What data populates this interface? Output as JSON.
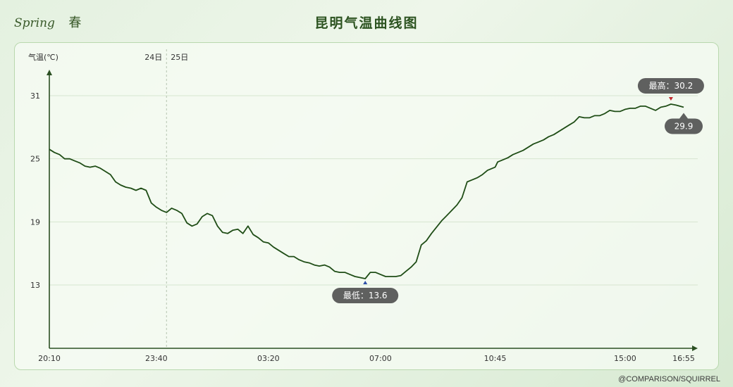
{
  "header": {
    "season_en": "Spring",
    "season_cn": "春"
  },
  "credit": "@COMPARISON/SQUIRREL",
  "colors": {
    "line": "#1f4d16",
    "axis": "#2b4f22",
    "tooltip_bg": "#5f605f",
    "max_marker": "#c0262b",
    "min_marker": "#2d4fa8"
  },
  "chart_data": {
    "type": "line",
    "title": "昆明气温曲线图",
    "ylabel": "气温(℃)",
    "yticks": [
      13,
      19,
      25,
      31
    ],
    "ylim": [
      7,
      33
    ],
    "xlim": [
      "20:10",
      "16:55"
    ],
    "xticks": [
      "20:10",
      "23:40",
      "03:20",
      "07:00",
      "10:45",
      "15:00",
      "16:55"
    ],
    "day_labels": {
      "before": "24日",
      "after": "25日"
    },
    "max_label": "最高：30.2",
    "min_label": "最低：13.6",
    "current_label": "29.9",
    "points": [
      [
        "20:10",
        25.9
      ],
      [
        "20:20",
        25.6
      ],
      [
        "20:30",
        25.4
      ],
      [
        "20:40",
        25.0
      ],
      [
        "20:50",
        25.0
      ],
      [
        "21:00",
        24.8
      ],
      [
        "21:10",
        24.6
      ],
      [
        "21:20",
        24.3
      ],
      [
        "21:30",
        24.2
      ],
      [
        "21:40",
        24.3
      ],
      [
        "21:50",
        24.1
      ],
      [
        "22:00",
        23.8
      ],
      [
        "22:10",
        23.5
      ],
      [
        "22:20",
        22.8
      ],
      [
        "22:30",
        22.5
      ],
      [
        "22:40",
        22.3
      ],
      [
        "22:50",
        22.2
      ],
      [
        "23:00",
        22.0
      ],
      [
        "23:10",
        22.2
      ],
      [
        "23:20",
        22.0
      ],
      [
        "23:30",
        20.8
      ],
      [
        "23:40",
        20.4
      ],
      [
        "23:50",
        20.1
      ],
      [
        "00:00",
        19.9
      ],
      [
        "00:10",
        20.3
      ],
      [
        "00:20",
        20.1
      ],
      [
        "00:30",
        19.8
      ],
      [
        "00:40",
        18.9
      ],
      [
        "00:50",
        18.6
      ],
      [
        "01:00",
        18.8
      ],
      [
        "01:10",
        19.5
      ],
      [
        "01:20",
        19.8
      ],
      [
        "01:30",
        19.6
      ],
      [
        "01:40",
        18.6
      ],
      [
        "01:50",
        18.0
      ],
      [
        "02:00",
        17.9
      ],
      [
        "02:10",
        18.2
      ],
      [
        "02:20",
        18.3
      ],
      [
        "02:30",
        17.9
      ],
      [
        "02:40",
        18.6
      ],
      [
        "02:50",
        17.8
      ],
      [
        "03:00",
        17.5
      ],
      [
        "03:10",
        17.1
      ],
      [
        "03:20",
        17.0
      ],
      [
        "03:30",
        16.6
      ],
      [
        "03:40",
        16.3
      ],
      [
        "03:50",
        16.0
      ],
      [
        "04:00",
        15.7
      ],
      [
        "04:10",
        15.7
      ],
      [
        "04:20",
        15.4
      ],
      [
        "04:30",
        15.2
      ],
      [
        "04:40",
        15.1
      ],
      [
        "04:50",
        14.9
      ],
      [
        "05:00",
        14.8
      ],
      [
        "05:10",
        14.9
      ],
      [
        "05:20",
        14.7
      ],
      [
        "05:30",
        14.3
      ],
      [
        "05:40",
        14.2
      ],
      [
        "05:50",
        14.2
      ],
      [
        "06:00",
        14.0
      ],
      [
        "06:10",
        13.8
      ],
      [
        "06:20",
        13.7
      ],
      [
        "06:30",
        13.6
      ],
      [
        "06:40",
        14.2
      ],
      [
        "06:50",
        14.2
      ],
      [
        "07:00",
        14.0
      ],
      [
        "07:10",
        13.8
      ],
      [
        "07:20",
        13.8
      ],
      [
        "07:30",
        13.8
      ],
      [
        "07:40",
        13.9
      ],
      [
        "07:50",
        14.3
      ],
      [
        "08:00",
        14.7
      ],
      [
        "08:10",
        15.2
      ],
      [
        "08:20",
        16.8
      ],
      [
        "08:30",
        17.2
      ],
      [
        "08:40",
        17.9
      ],
      [
        "08:50",
        18.5
      ],
      [
        "09:00",
        19.1
      ],
      [
        "09:10",
        19.6
      ],
      [
        "09:20",
        20.1
      ],
      [
        "09:30",
        20.6
      ],
      [
        "09:40",
        21.3
      ],
      [
        "09:50",
        22.8
      ],
      [
        "10:00",
        23.0
      ],
      [
        "10:10",
        23.2
      ],
      [
        "10:20",
        23.5
      ],
      [
        "10:30",
        23.9
      ],
      [
        "10:45",
        24.2
      ],
      [
        "10:50",
        24.7
      ],
      [
        "11:00",
        24.9
      ],
      [
        "11:10",
        25.1
      ],
      [
        "11:20",
        25.4
      ],
      [
        "11:30",
        25.6
      ],
      [
        "11:40",
        25.8
      ],
      [
        "11:50",
        26.1
      ],
      [
        "12:00",
        26.4
      ],
      [
        "12:10",
        26.6
      ],
      [
        "12:20",
        26.8
      ],
      [
        "12:30",
        27.1
      ],
      [
        "12:40",
        27.3
      ],
      [
        "12:50",
        27.6
      ],
      [
        "13:00",
        27.9
      ],
      [
        "13:10",
        28.2
      ],
      [
        "13:20",
        28.5
      ],
      [
        "13:30",
        29.0
      ],
      [
        "13:40",
        28.9
      ],
      [
        "13:50",
        28.9
      ],
      [
        "14:00",
        29.1
      ],
      [
        "14:10",
        29.1
      ],
      [
        "14:20",
        29.3
      ],
      [
        "14:30",
        29.6
      ],
      [
        "14:40",
        29.5
      ],
      [
        "14:50",
        29.5
      ],
      [
        "15:00",
        29.7
      ],
      [
        "15:10",
        29.8
      ],
      [
        "15:20",
        29.8
      ],
      [
        "15:30",
        30.0
      ],
      [
        "15:40",
        30.0
      ],
      [
        "15:50",
        29.8
      ],
      [
        "16:00",
        29.6
      ],
      [
        "16:10",
        29.9
      ],
      [
        "16:20",
        30.0
      ],
      [
        "16:30",
        30.2
      ],
      [
        "16:40",
        30.1
      ],
      [
        "16:55",
        29.9
      ]
    ]
  }
}
